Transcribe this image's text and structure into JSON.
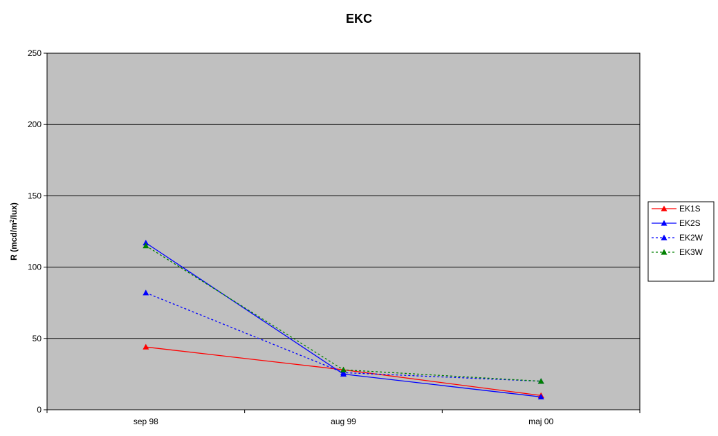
{
  "chart_data": {
    "type": "line",
    "title": "EKC",
    "ylabel": "R (mcd/m²/lux)",
    "ylabel_parts": {
      "base": "R (mcd/m",
      "sup": "2",
      "tail": "/lux)"
    },
    "xlabel": "",
    "categories": [
      "sep 98",
      "aug 99",
      "maj 00"
    ],
    "ylim": [
      0,
      250
    ],
    "yticks": [
      0,
      50,
      100,
      150,
      200,
      250
    ],
    "grid": true,
    "legend_position": "right",
    "plot_background": "#c0c0c0",
    "series": [
      {
        "name": "EK1S",
        "values": [
          44,
          28,
          10
        ],
        "color": "#ff0000",
        "dashed": false
      },
      {
        "name": "EK2S",
        "values": [
          117,
          25,
          9
        ],
        "color": "#0000ff",
        "dashed": false
      },
      {
        "name": "EK2W",
        "values": [
          82,
          26,
          20
        ],
        "color": "#0000ff",
        "dashed": true
      },
      {
        "name": "EK3W",
        "values": [
          115,
          28,
          20
        ],
        "color": "#008000",
        "dashed": true
      }
    ]
  }
}
